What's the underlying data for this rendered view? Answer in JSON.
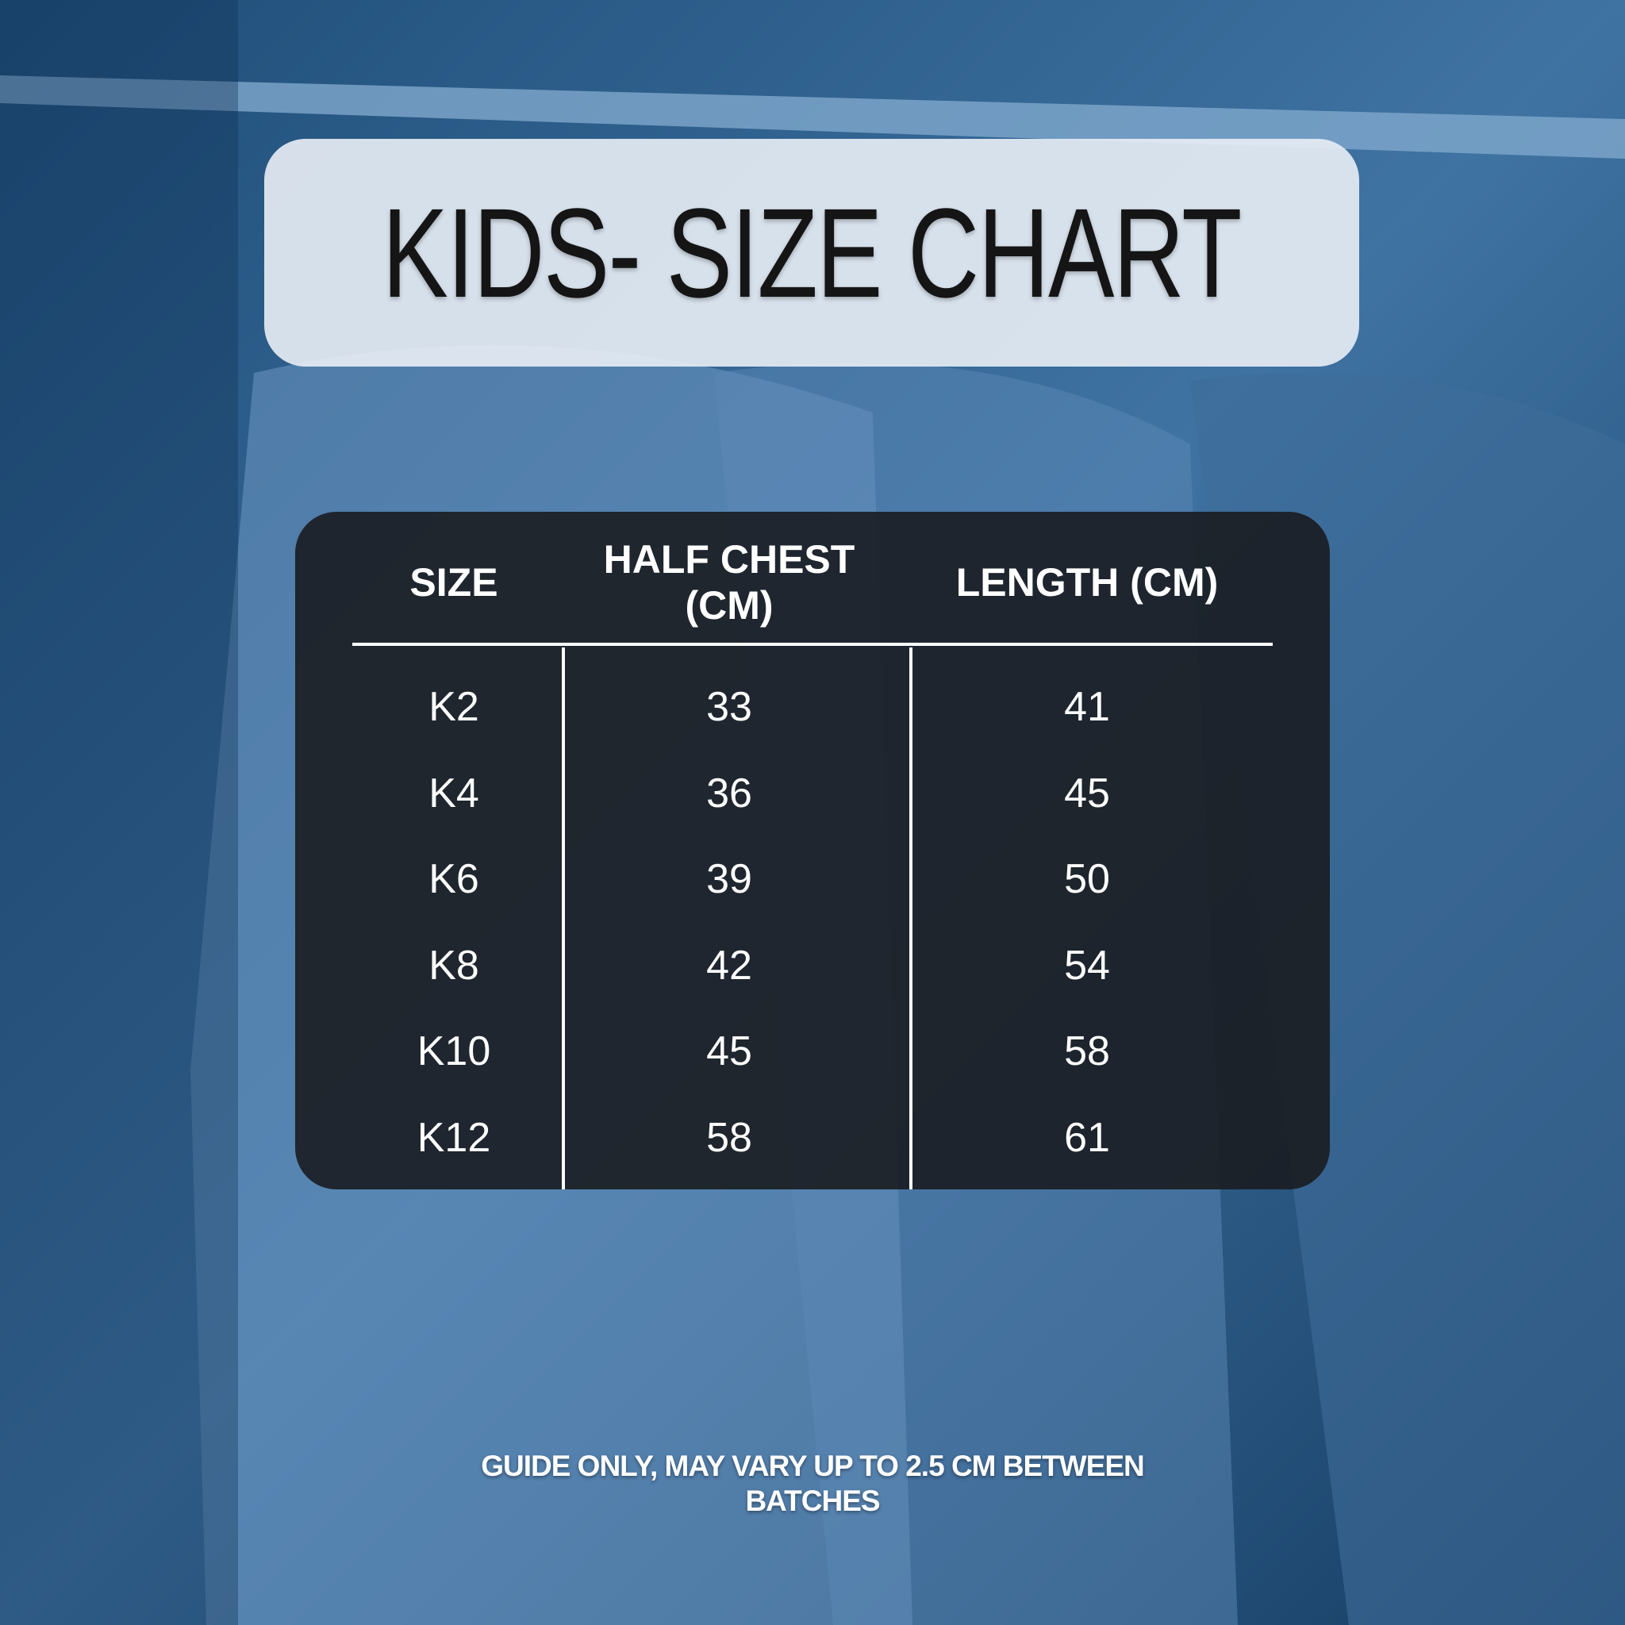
{
  "header": {
    "title": "KIDS- SIZE CHART"
  },
  "table": {
    "columns": [
      "SIZE",
      "HALF CHEST (CM)",
      "LENGTH (CM)"
    ],
    "rows": [
      [
        "K2",
        33,
        41
      ],
      [
        "K4",
        36,
        45
      ],
      [
        "K6",
        39,
        50
      ],
      [
        "K8",
        42,
        54
      ],
      [
        "K10",
        45,
        58
      ],
      [
        "K12",
        58,
        61
      ]
    ]
  },
  "footer": {
    "note": "GUIDE ONLY, MAY VARY UP TO 2.5 CM BETWEEN BATCHES"
  }
}
